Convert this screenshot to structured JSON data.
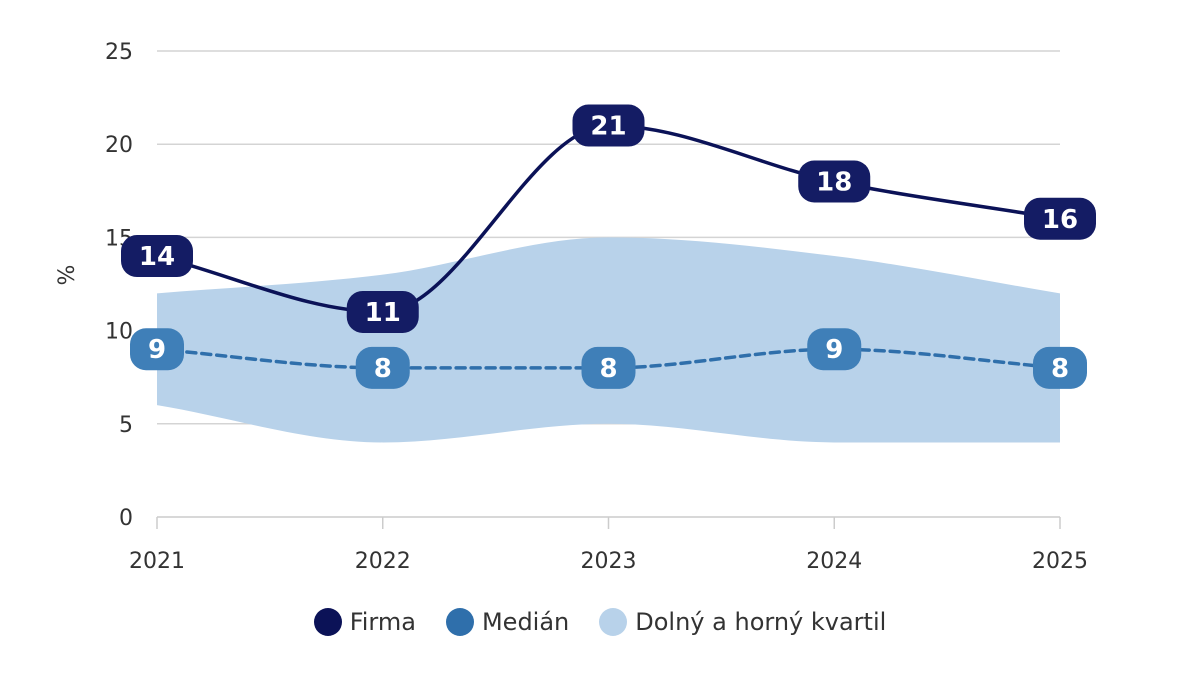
{
  "chart_data": {
    "type": "line",
    "title": "",
    "xlabel": "",
    "ylabel": "%",
    "categories": [
      "2021",
      "2022",
      "2023",
      "2024",
      "2025"
    ],
    "ylim": [
      0,
      25
    ],
    "yticks": [
      0,
      5,
      10,
      15,
      20,
      25
    ],
    "grid": true,
    "legend_position": "bottom",
    "series": [
      {
        "name": "Firma",
        "type": "line",
        "color": "#0b1257",
        "values": [
          14,
          11,
          21,
          18,
          16
        ],
        "labels": [
          "14",
          "11",
          "21",
          "18",
          "16"
        ]
      },
      {
        "name": "Medián",
        "type": "line-dashed",
        "color": "#2f6fab",
        "values": [
          9,
          8,
          8,
          9,
          8
        ],
        "labels": [
          "9",
          "8",
          "8",
          "9",
          "8"
        ]
      },
      {
        "name": "Dolný a horný kvartil",
        "type": "area-range",
        "color": "#b8d2ea",
        "lower": [
          6,
          4,
          5,
          4,
          4
        ],
        "upper": [
          12,
          13,
          15,
          14,
          12
        ]
      }
    ]
  },
  "legend": {
    "items": [
      {
        "label": "Firma",
        "color": "#0b1257"
      },
      {
        "label": "Medián",
        "color": "#2f6fab"
      },
      {
        "label": "Dolný a horný kvartil",
        "color": "#b8d2ea"
      }
    ]
  }
}
